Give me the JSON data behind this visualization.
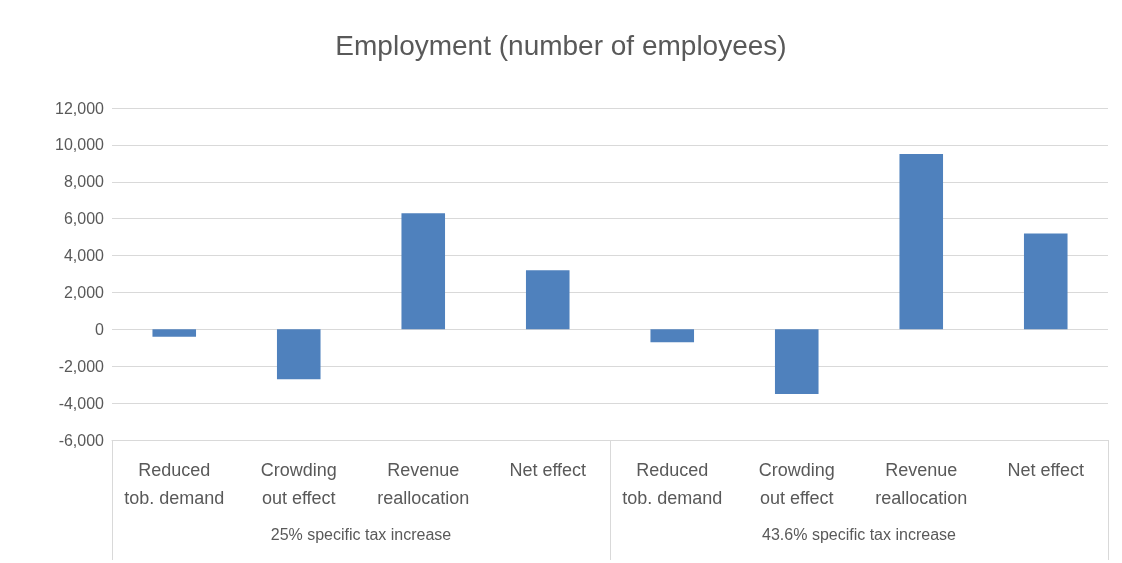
{
  "chart_data": {
    "type": "bar",
    "title": "Employment (number of employees)",
    "categories": [
      "Reduced\ntob. demand",
      "Crowding\nout effect",
      "Revenue\nreallocation",
      "Net effect",
      "Reduced\ntob. demand",
      "Crowding\nout effect",
      "Revenue\nreallocation",
      "Net effect"
    ],
    "values": [
      -400,
      -2700,
      6300,
      3200,
      -700,
      -3500,
      9500,
      5200
    ],
    "color": "#4f81bd",
    "ylim": [
      -6000,
      12000
    ],
    "yticks": [
      {
        "value": -6000,
        "label": "-6,000"
      },
      {
        "value": -4000,
        "label": "-4,000"
      },
      {
        "value": -2000,
        "label": "-2,000"
      },
      0,
      {
        "value": 2000,
        "label": "2,000"
      },
      {
        "value": 4000,
        "label": "4,000"
      },
      {
        "value": 6000,
        "label": "6,000"
      },
      {
        "value": 8000,
        "label": "8,000"
      },
      {
        "value": 10000,
        "label": "10,000"
      },
      {
        "value": 12000,
        "label": "12,000"
      }
    ],
    "grid": "y",
    "annotations": [
      "25% specific tax increase",
      "43.6% specific tax increase"
    ]
  }
}
